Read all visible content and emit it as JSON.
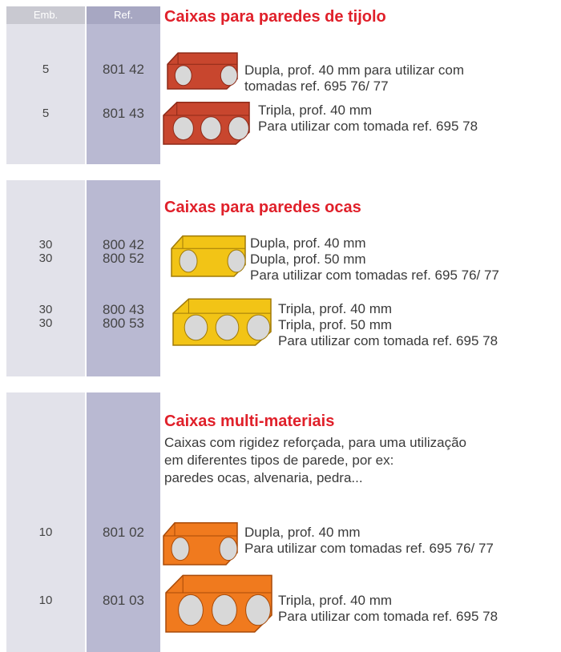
{
  "header": {
    "emb": "Emb.",
    "ref": "Ref."
  },
  "sections": [
    {
      "title": "Caixas para paredes de tijolo",
      "items": [
        {
          "emb": [
            "5"
          ],
          "ref": [
            "801 42"
          ],
          "lines": [
            "Dupla, prof. 40 mm para utilizar com",
            "tomadas ref. 695 76/ 77"
          ]
        },
        {
          "emb": [
            "5"
          ],
          "ref": [
            "801 43"
          ],
          "lines": [
            "Tripla, prof. 40 mm",
            "Para utilizar com tomada ref. 695 78"
          ]
        }
      ]
    },
    {
      "title": "Caixas para paredes ocas",
      "items": [
        {
          "emb": [
            "30",
            "30"
          ],
          "ref": [
            "800 42",
            "800 52"
          ],
          "lines": [
            "Dupla, prof. 40 mm",
            "Dupla, prof. 50 mm",
            "Para utilizar com tomadas ref. 695 76/ 77"
          ]
        },
        {
          "emb": [
            "30",
            "30"
          ],
          "ref": [
            "800 43",
            "800 53"
          ],
          "lines": [
            "Tripla, prof. 40 mm",
            "Tripla, prof. 50 mm",
            "Para utilizar com tomada ref. 695 78"
          ]
        }
      ]
    },
    {
      "title": "Caixas multi-materiais",
      "description": [
        "Caixas com rigidez reforçada, para uma utilização",
        "em diferentes tipos de parede, por ex:",
        "paredes ocas, alvenaria, pedra..."
      ],
      "items": [
        {
          "emb": [
            "10"
          ],
          "ref": [
            "801 02"
          ],
          "lines": [
            "Dupla, prof. 40 mm",
            "Para utilizar com tomadas ref. 695 76/ 77"
          ]
        },
        {
          "emb": [
            "10"
          ],
          "ref": [
            "801 03"
          ],
          "lines": [
            "Tripla, prof. 40 mm",
            "Para utilizar com tomada ref. 695 78"
          ]
        }
      ]
    }
  ]
}
